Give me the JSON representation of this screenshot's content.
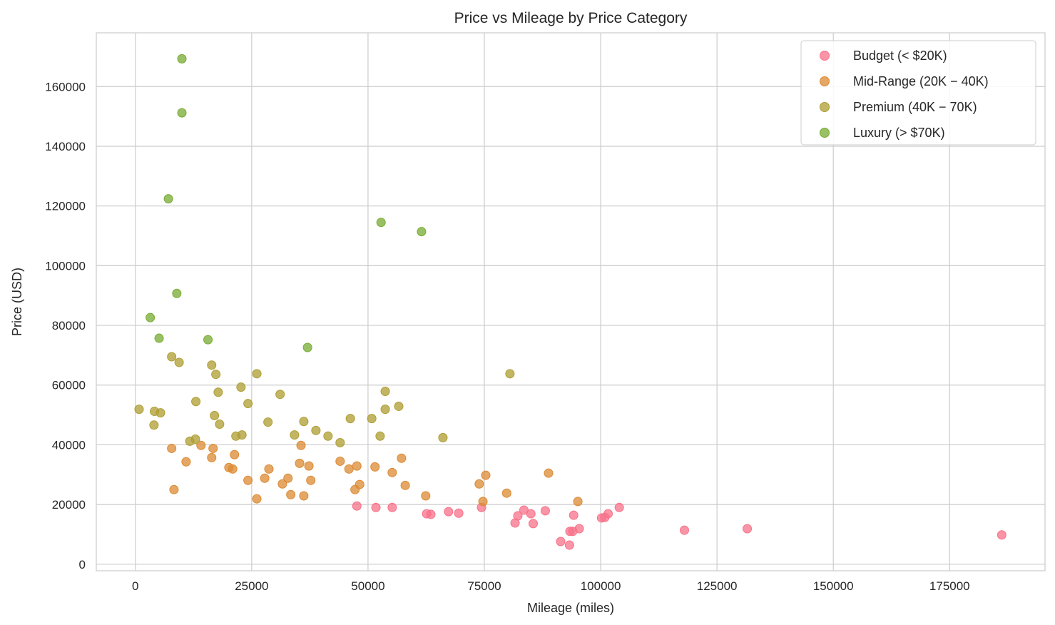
{
  "chart_data": {
    "type": "scatter",
    "title": "Price vs Mileage by Price Category",
    "xlabel": "Mileage (miles)",
    "ylabel": "Price (USD)",
    "xlim": [
      -8400,
      195500
    ],
    "ylim": [
      -2200,
      178000
    ],
    "xticks": [
      0,
      25000,
      50000,
      75000,
      100000,
      125000,
      150000,
      175000
    ],
    "yticks": [
      0,
      20000,
      40000,
      60000,
      80000,
      100000,
      120000,
      140000,
      160000
    ],
    "grid": true,
    "legend_position": "top-right",
    "series": [
      {
        "name": "Budget (< $20K)",
        "color": "#f77189",
        "points": [
          [
            47600,
            19500
          ],
          [
            51700,
            19000
          ],
          [
            55200,
            19000
          ],
          [
            62600,
            16900
          ],
          [
            63500,
            16700
          ],
          [
            67300,
            17600
          ],
          [
            69500,
            17100
          ],
          [
            74400,
            19000
          ],
          [
            81600,
            13800
          ],
          [
            82200,
            16200
          ],
          [
            83500,
            18100
          ],
          [
            85000,
            16900
          ],
          [
            85500,
            13600
          ],
          [
            88100,
            17900
          ],
          [
            91400,
            7600
          ],
          [
            93300,
            6400
          ],
          [
            93400,
            11000
          ],
          [
            94000,
            11000
          ],
          [
            94200,
            16400
          ],
          [
            95400,
            11900
          ],
          [
            100200,
            15500
          ],
          [
            100900,
            15700
          ],
          [
            101600,
            16900
          ],
          [
            104000,
            19000
          ],
          [
            118000,
            11400
          ],
          [
            131500,
            11900
          ],
          [
            186200,
            9800
          ]
        ]
      },
      {
        "name": "Mid-Range (20K − 40K)",
        "color": "#dc8932",
        "points": [
          [
            7800,
            38800
          ],
          [
            8300,
            25000
          ],
          [
            10900,
            34300
          ],
          [
            14100,
            39800
          ],
          [
            16400,
            35700
          ],
          [
            16700,
            38800
          ],
          [
            20100,
            32400
          ],
          [
            20900,
            31900
          ],
          [
            21300,
            36700
          ],
          [
            24200,
            28100
          ],
          [
            26100,
            21900
          ],
          [
            27800,
            28800
          ],
          [
            28700,
            31900
          ],
          [
            31600,
            26900
          ],
          [
            32800,
            28800
          ],
          [
            33400,
            23300
          ],
          [
            35300,
            33800
          ],
          [
            35600,
            39800
          ],
          [
            36200,
            22900
          ],
          [
            37300,
            32900
          ],
          [
            37700,
            28100
          ],
          [
            44000,
            34500
          ],
          [
            45900,
            31900
          ],
          [
            47200,
            25000
          ],
          [
            47600,
            32900
          ],
          [
            48200,
            26700
          ],
          [
            51500,
            32600
          ],
          [
            55200,
            30700
          ],
          [
            57200,
            35500
          ],
          [
            58000,
            26400
          ],
          [
            62400,
            22900
          ],
          [
            73900,
            26900
          ],
          [
            74700,
            21000
          ],
          [
            75300,
            29800
          ],
          [
            79800,
            23800
          ],
          [
            88800,
            30500
          ],
          [
            95100,
            21000
          ]
        ]
      },
      {
        "name": "Premium (40K − 70K)",
        "color": "#ae9d31",
        "points": [
          [
            800,
            51900
          ],
          [
            4000,
            46600
          ],
          [
            4100,
            51200
          ],
          [
            5400,
            50700
          ],
          [
            7800,
            69500
          ],
          [
            9400,
            67600
          ],
          [
            11700,
            41200
          ],
          [
            12900,
            41900
          ],
          [
            13000,
            54500
          ],
          [
            16400,
            66700
          ],
          [
            17000,
            49800
          ],
          [
            17300,
            63600
          ],
          [
            17800,
            57600
          ],
          [
            18100,
            46900
          ],
          [
            21600,
            42900
          ],
          [
            22700,
            59300
          ],
          [
            22900,
            43300
          ],
          [
            24200,
            53800
          ],
          [
            26100,
            63800
          ],
          [
            28500,
            47600
          ],
          [
            31100,
            56900
          ],
          [
            34200,
            43300
          ],
          [
            36200,
            47800
          ],
          [
            38800,
            44800
          ],
          [
            41400,
            42900
          ],
          [
            44000,
            40700
          ],
          [
            46200,
            48800
          ],
          [
            50800,
            48800
          ],
          [
            52600,
            42900
          ],
          [
            53700,
            51900
          ],
          [
            53700,
            57900
          ],
          [
            56600,
            52900
          ],
          [
            66100,
            42400
          ],
          [
            80500,
            63800
          ]
        ]
      },
      {
        "name": "Luxury (> $70K)",
        "color": "#77ab31",
        "points": [
          [
            10000,
            169300
          ],
          [
            10000,
            151200
          ],
          [
            7100,
            122400
          ],
          [
            8900,
            90700
          ],
          [
            3200,
            82600
          ],
          [
            5100,
            75700
          ],
          [
            15600,
            75200
          ],
          [
            37000,
            72600
          ],
          [
            52800,
            114500
          ],
          [
            61500,
            111400
          ]
        ]
      }
    ]
  }
}
